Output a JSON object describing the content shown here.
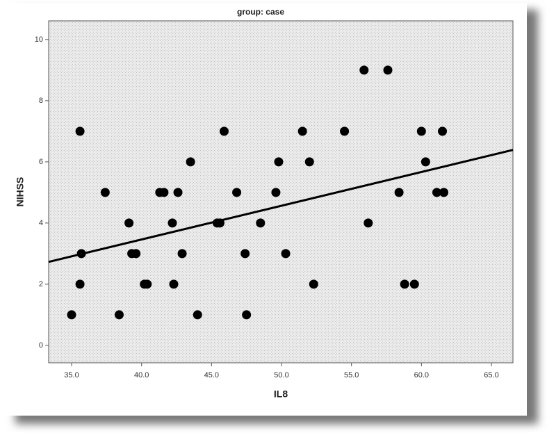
{
  "chart_data": {
    "type": "scatter",
    "title": "group: case",
    "x_label": "IL8",
    "y_label": "NIHSS",
    "xlim": [
      33.36,
      66.54
    ],
    "ylim": [
      -0.57,
      10.61
    ],
    "xticks": [
      {
        "value": 35,
        "label": "35.0"
      },
      {
        "value": 40,
        "label": "40.0"
      },
      {
        "value": 45,
        "label": "45.0"
      },
      {
        "value": 50,
        "label": "50.0"
      },
      {
        "value": 55,
        "label": "55.0"
      },
      {
        "value": 60,
        "label": "60.0"
      },
      {
        "value": 65,
        "label": "65.0"
      }
    ],
    "yticks": [
      0,
      2,
      4,
      6,
      8,
      10
    ],
    "color": "#000000",
    "line_color": "#000000",
    "x": [
      35.0,
      35.6,
      35.7,
      35.6,
      37.4,
      38.4,
      39.1,
      39.3,
      39.6,
      40.2,
      40.4,
      41.3,
      41.6,
      42.2,
      42.3,
      42.6,
      42.9,
      43.5,
      44.0,
      45.4,
      45.6,
      45.9,
      46.8,
      47.4,
      47.5,
      48.5,
      49.6,
      49.8,
      50.3,
      51.5,
      52.0,
      52.3,
      54.5,
      55.9,
      56.2,
      57.6,
      58.4,
      58.8,
      59.5,
      60.0,
      60.3,
      61.1,
      61.5,
      61.6
    ],
    "values": [
      1,
      7,
      3,
      2,
      5,
      1,
      4,
      3,
      3,
      2,
      2,
      5,
      5,
      4,
      2,
      5,
      3,
      6,
      1,
      4,
      4,
      7,
      5,
      3,
      1,
      4,
      5,
      6,
      3,
      7,
      6,
      2,
      7,
      9,
      4,
      9,
      5,
      2,
      2,
      7,
      6,
      5,
      7,
      5
    ],
    "fit_line": {
      "x": [
        33.36,
        66.54
      ],
      "y": [
        2.73,
        6.39
      ]
    }
  }
}
